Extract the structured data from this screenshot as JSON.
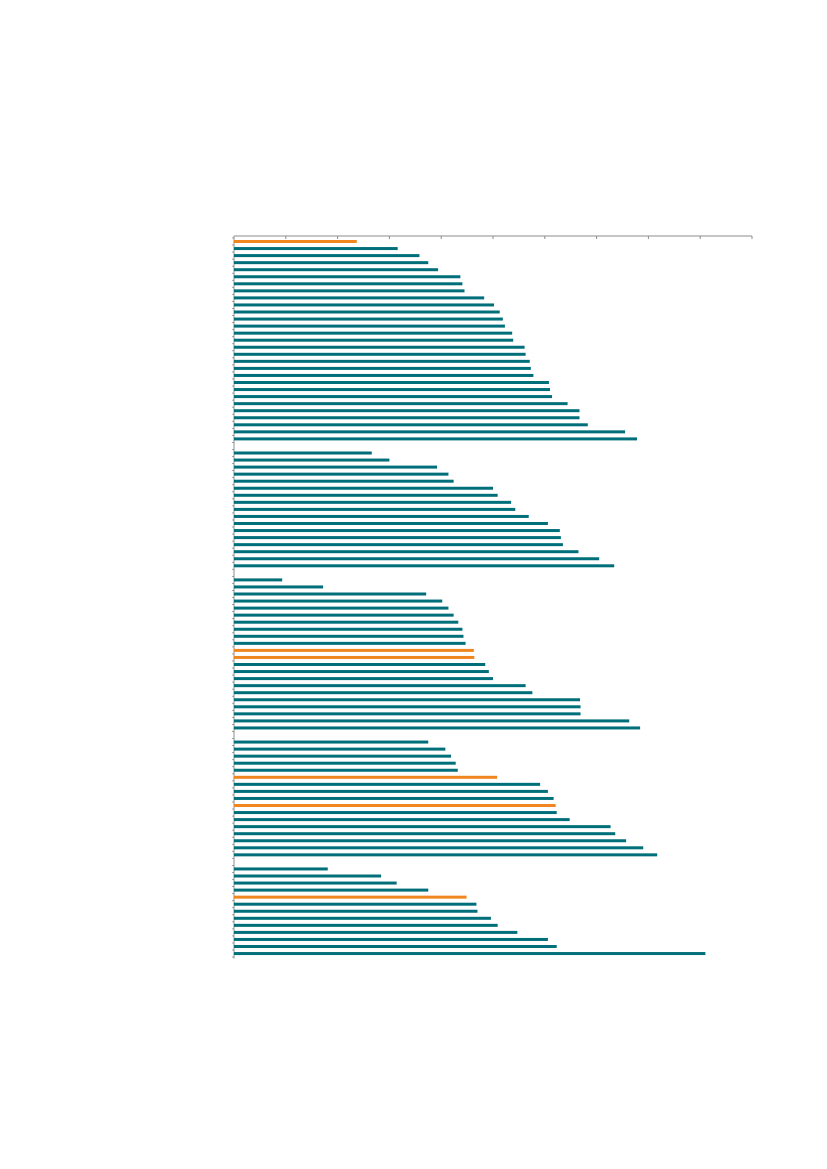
{
  "chart_data": {
    "type": "bar",
    "orientation": "horizontal",
    "title": "",
    "xlabel": "",
    "ylabel": "",
    "xlim": [
      0,
      100
    ],
    "grid": false,
    "legend": "none",
    "colors": {
      "default": "#006f7a",
      "highlight": "#f0861f"
    },
    "groups": [
      {
        "bars": [
          {
            "value": 23.7,
            "highlight": true
          },
          {
            "value": 31.6
          },
          {
            "value": 35.8
          },
          {
            "value": 37.5
          },
          {
            "value": 39.4
          },
          {
            "value": 43.7
          },
          {
            "value": 44.1
          },
          {
            "value": 44.5
          },
          {
            "value": 48.3
          },
          {
            "value": 50.2
          },
          {
            "value": 51.3
          },
          {
            "value": 51.9
          },
          {
            "value": 52.3
          },
          {
            "value": 53.7
          },
          {
            "value": 53.9
          },
          {
            "value": 56.1
          },
          {
            "value": 56.3
          },
          {
            "value": 57.1
          },
          {
            "value": 57.3
          },
          {
            "value": 57.8
          },
          {
            "value": 60.8
          },
          {
            "value": 61.0
          },
          {
            "value": 61.4
          },
          {
            "value": 64.4
          },
          {
            "value": 66.7
          },
          {
            "value": 66.7
          },
          {
            "value": 68.3
          },
          {
            "value": 75.5
          },
          {
            "value": 77.8
          }
        ]
      },
      {
        "bars": [
          {
            "value": 26.6
          },
          {
            "value": 30.0
          },
          {
            "value": 39.2
          },
          {
            "value": 41.4
          },
          {
            "value": 42.4
          },
          {
            "value": 50.0
          },
          {
            "value": 50.9
          },
          {
            "value": 53.5
          },
          {
            "value": 54.3
          },
          {
            "value": 56.9
          },
          {
            "value": 60.6
          },
          {
            "value": 62.9
          },
          {
            "value": 63.1
          },
          {
            "value": 63.5
          },
          {
            "value": 66.5
          },
          {
            "value": 70.5
          },
          {
            "value": 73.4
          }
        ]
      },
      {
        "bars": [
          {
            "value": 9.3
          },
          {
            "value": 17.2
          },
          {
            "value": 37.1
          },
          {
            "value": 40.2
          },
          {
            "value": 41.4
          },
          {
            "value": 42.4
          },
          {
            "value": 43.3
          },
          {
            "value": 44.1
          },
          {
            "value": 44.3
          },
          {
            "value": 44.7
          },
          {
            "value": 46.3,
            "highlight": true
          },
          {
            "value": 46.4,
            "highlight": true
          },
          {
            "value": 48.5
          },
          {
            "value": 49.2
          },
          {
            "value": 50.0
          },
          {
            "value": 56.3
          },
          {
            "value": 57.6
          },
          {
            "value": 66.8
          },
          {
            "value": 66.9
          },
          {
            "value": 66.9
          },
          {
            "value": 76.3
          },
          {
            "value": 78.4
          }
        ]
      },
      {
        "bars": [
          {
            "value": 37.5
          },
          {
            "value": 40.8
          },
          {
            "value": 41.9
          },
          {
            "value": 42.8
          },
          {
            "value": 43.2
          },
          {
            "value": 50.8,
            "highlight": true
          },
          {
            "value": 59.1
          },
          {
            "value": 60.6
          },
          {
            "value": 61.7
          },
          {
            "value": 62.1,
            "highlight": true
          },
          {
            "value": 62.3
          },
          {
            "value": 64.8
          },
          {
            "value": 72.7
          },
          {
            "value": 73.6
          },
          {
            "value": 75.7
          },
          {
            "value": 79.0
          },
          {
            "value": 81.7
          }
        ]
      },
      {
        "bars": [
          {
            "value": 18.1
          },
          {
            "value": 28.4
          },
          {
            "value": 31.4
          },
          {
            "value": 37.5
          },
          {
            "value": 44.9,
            "highlight": true
          },
          {
            "value": 46.8
          },
          {
            "value": 47.0
          },
          {
            "value": 49.6
          },
          {
            "value": 50.9
          },
          {
            "value": 54.7
          },
          {
            "value": 60.6
          },
          {
            "value": 62.3
          },
          {
            "value": 91.0
          }
        ]
      }
    ]
  }
}
